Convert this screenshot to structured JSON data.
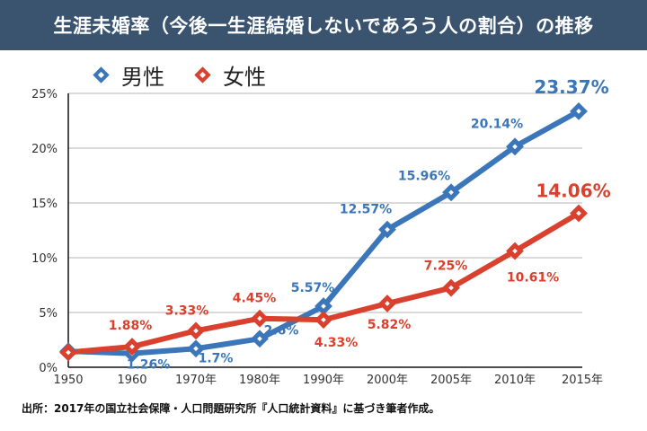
{
  "header": {
    "title": "生涯未婚率（今後一生涯結婚しないであろう人の割合）の推移"
  },
  "footer": {
    "source": "出所：2017年の国立社会保障・人口問題研究所『人口統計資料』に基づき筆者作成。"
  },
  "chart_data": {
    "type": "line",
    "title": "生涯未婚率（今後一生涯結婚しないであろう人の割合）の推移",
    "xlabel": "",
    "ylabel": "",
    "categories": [
      "1950",
      "1960",
      "1970年",
      "1980年",
      "1990年",
      "2000年",
      "2005年",
      "2010年",
      "2015年"
    ],
    "yticks": [
      "0%",
      "5%",
      "10%",
      "15%",
      "20%",
      "25%"
    ],
    "ylim": [
      0,
      25
    ],
    "grid": true,
    "legend_position": "top-left",
    "series": [
      {
        "name": "男性",
        "color": "#3a76b9",
        "values": [
          1.46,
          1.26,
          1.7,
          2.6,
          5.57,
          12.57,
          15.96,
          20.14,
          23.37
        ],
        "labels": [
          "",
          "1.26%",
          "1.7%",
          "2.6%",
          "5.57%",
          "12.57%",
          "15.96%",
          "20.14%",
          "23.37%"
        ]
      },
      {
        "name": "女性",
        "color": "#d9402e",
        "values": [
          1.35,
          1.88,
          3.33,
          4.45,
          4.33,
          5.82,
          7.25,
          10.61,
          14.06
        ],
        "labels": [
          "",
          "1.88%",
          "3.33%",
          "4.45%",
          "4.33%",
          "5.82%",
          "7.25%",
          "10.61%",
          "14.06%"
        ]
      }
    ]
  }
}
